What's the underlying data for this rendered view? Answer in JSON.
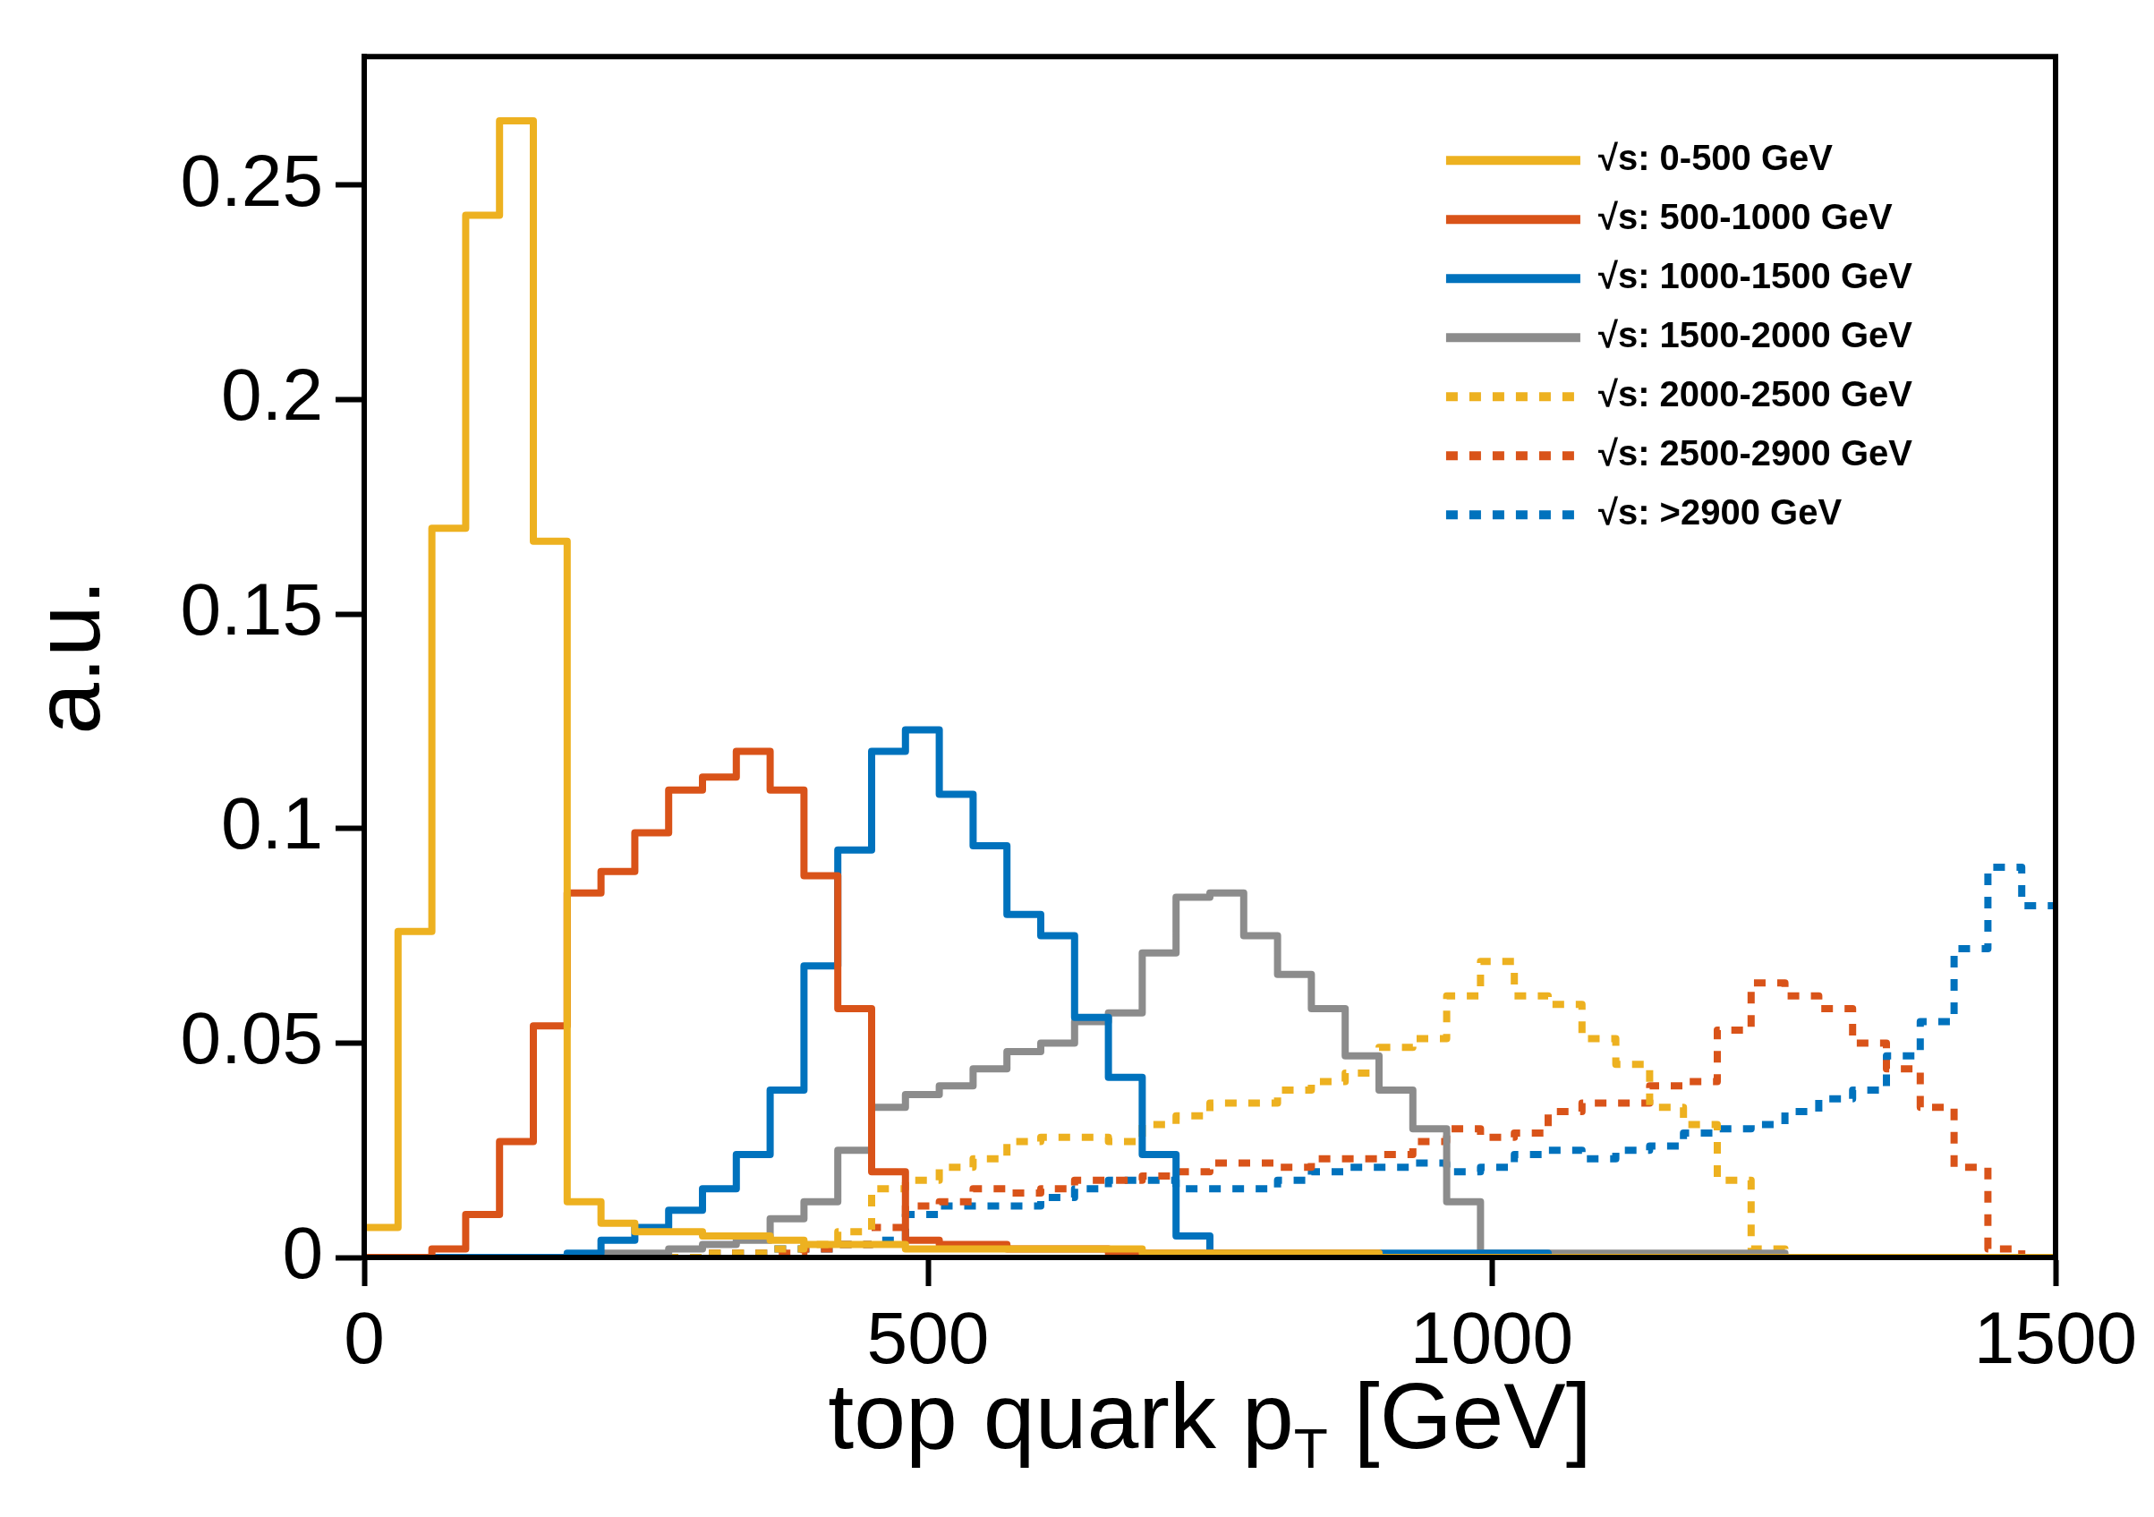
{
  "chart_data": {
    "type": "histogram",
    "xlabel": "top quark p$_{T}$ [GeV]",
    "ylabel": "a.u.",
    "bins": [
      0,
      30,
      60,
      90,
      120,
      150,
      180,
      210,
      240,
      270,
      300,
      330,
      360,
      390,
      420,
      450,
      480,
      510,
      540,
      570,
      600,
      630,
      660,
      690,
      720,
      750,
      780,
      810,
      840,
      870,
      900,
      930,
      960,
      990,
      1020,
      1050,
      1080,
      1110,
      1140,
      1170,
      1200,
      1230,
      1260,
      1290,
      1320,
      1350,
      1380,
      1410,
      1440,
      1470,
      1500
    ],
    "series": [
      {
        "name": "√s: 0-500 GeV",
        "color": "#edb120",
        "line_style": "solid",
        "values": [
          0.007,
          0.076,
          0.17,
          0.243,
          0.265,
          0.167,
          0.013,
          0.008,
          0.006,
          0.006,
          0.005,
          0.005,
          0.004,
          0.003,
          0.003,
          0.003,
          0.002,
          0.002,
          0.002,
          0.002,
          0.002,
          0.002,
          0.002,
          0.001,
          0.001,
          0.001,
          0.001,
          0.001,
          0.001,
          0.001,
          0,
          0,
          0,
          0,
          0,
          0,
          0,
          0,
          0,
          0,
          0,
          0,
          0,
          0,
          0,
          0,
          0,
          0,
          0,
          0
        ]
      },
      {
        "name": "√s: 500-1000 GeV",
        "color": "#d95319",
        "line_style": "solid",
        "values": [
          0,
          0,
          0.002,
          0.01,
          0.027,
          0.054,
          0.085,
          0.09,
          0.099,
          0.109,
          0.112,
          0.118,
          0.109,
          0.089,
          0.058,
          0.02,
          0.004,
          0.003,
          0.003,
          0.002,
          0.002,
          0.002,
          0.001,
          0.001,
          0.001,
          0.001,
          0.001,
          0.001,
          0.001,
          0.001,
          0,
          0,
          0,
          0,
          0,
          0,
          0,
          0,
          0,
          0,
          0,
          0,
          0,
          0,
          0,
          0,
          0,
          0,
          0,
          0
        ]
      },
      {
        "name": "√s: 1000-1500 GeV",
        "color": "#0072bd",
        "line_style": "solid",
        "values": [
          0,
          0,
          0,
          0,
          0,
          0,
          0.001,
          0.004,
          0.007,
          0.011,
          0.016,
          0.024,
          0.039,
          0.068,
          0.095,
          0.118,
          0.123,
          0.108,
          0.096,
          0.08,
          0.075,
          0.056,
          0.042,
          0.024,
          0.005,
          0.001,
          0.001,
          0.001,
          0.001,
          0.001,
          0.001,
          0.001,
          0.001,
          0.001,
          0.001,
          0,
          0,
          0,
          0,
          0,
          0,
          0,
          0,
          0,
          0,
          0,
          0,
          0,
          0,
          0
        ]
      },
      {
        "name": "√s: 1500-2000 GeV",
        "color": "#8c8c8c",
        "line_style": "solid",
        "values": [
          0,
          0,
          0,
          0,
          0,
          0,
          0,
          0.001,
          0.001,
          0.002,
          0.003,
          0.004,
          0.009,
          0.013,
          0.025,
          0.035,
          0.038,
          0.04,
          0.044,
          0.048,
          0.05,
          0.055,
          0.057,
          0.071,
          0.084,
          0.085,
          0.075,
          0.066,
          0.058,
          0.047,
          0.039,
          0.03,
          0.013,
          0.001,
          0.001,
          0.001,
          0.001,
          0.001,
          0.001,
          0.001,
          0.001,
          0.001,
          0,
          0,
          0,
          0,
          0,
          0,
          0,
          0
        ]
      },
      {
        "name": "√s: 2000-2500 GeV",
        "color": "#edb120",
        "line_style": "dotted",
        "values": [
          0,
          0,
          0,
          0,
          0,
          0,
          0,
          0,
          0,
          0,
          0.001,
          0.001,
          0.002,
          0.003,
          0.006,
          0.016,
          0.018,
          0.021,
          0.023,
          0.027,
          0.028,
          0.028,
          0.027,
          0.031,
          0.033,
          0.036,
          0.036,
          0.039,
          0.041,
          0.043,
          0.049,
          0.051,
          0.061,
          0.069,
          0.061,
          0.059,
          0.051,
          0.045,
          0.035,
          0.031,
          0.018,
          0.002,
          0,
          0,
          0,
          0,
          0,
          0,
          0,
          0
        ]
      },
      {
        "name": "√s: 2500-2900 GeV",
        "color": "#d95319",
        "line_style": "dotted",
        "values": [
          0,
          0,
          0,
          0,
          0,
          0,
          0,
          0,
          0,
          0,
          0.001,
          0.001,
          0.001,
          0.002,
          0.003,
          0.007,
          0.012,
          0.013,
          0.016,
          0.015,
          0.016,
          0.018,
          0.018,
          0.019,
          0.02,
          0.022,
          0.022,
          0.021,
          0.023,
          0.023,
          0.024,
          0.027,
          0.03,
          0.028,
          0.029,
          0.034,
          0.036,
          0.036,
          0.04,
          0.041,
          0.053,
          0.064,
          0.061,
          0.058,
          0.05,
          0.044,
          0.035,
          0.021,
          0.002,
          0
        ]
      },
      {
        "name": "√s: >2900 GeV",
        "color": "#0072bd",
        "line_style": "dotted",
        "values": [
          0,
          0,
          0,
          0,
          0,
          0,
          0,
          0,
          0,
          0,
          0.001,
          0.001,
          0.002,
          0.002,
          0.003,
          0.004,
          0.01,
          0.012,
          0.012,
          0.012,
          0.014,
          0.016,
          0.018,
          0.018,
          0.016,
          0.016,
          0.016,
          0.018,
          0.02,
          0.021,
          0.021,
          0.022,
          0.02,
          0.021,
          0.024,
          0.025,
          0.023,
          0.025,
          0.026,
          0.029,
          0.03,
          0.031,
          0.034,
          0.037,
          0.039,
          0.047,
          0.055,
          0.072,
          0.091,
          0.082
        ]
      }
    ],
    "xlim": [
      0,
      1500
    ],
    "xticks": [
      0,
      500,
      1000,
      1500
    ],
    "ylim": [
      0,
      0.28
    ],
    "yticks": [
      0,
      0.05,
      0.1,
      0.15,
      0.2,
      0.25
    ],
    "legend": "top right"
  }
}
